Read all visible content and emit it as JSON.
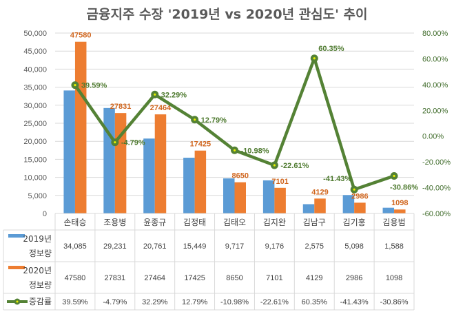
{
  "chart_data": {
    "type": "bar",
    "title": "금융지주 수장 '2019년 vs 2020년 관심도' 추이",
    "categories": [
      "손태승",
      "조용병",
      "윤종규",
      "김정태",
      "김태오",
      "김지완",
      "김남구",
      "김기홍",
      "김용범"
    ],
    "series": [
      {
        "name": "2019년 정보량",
        "type": "bar",
        "axis": "left",
        "color": "#5b9bd5",
        "values": [
          34085,
          29231,
          20761,
          15449,
          9717,
          9176,
          2575,
          5098,
          1588
        ],
        "table_labels": [
          "34,085",
          "29,231",
          "20,761",
          "15,449",
          "9,717",
          "9,176",
          "2,575",
          "5,098",
          "1,588"
        ]
      },
      {
        "name": "2020년 정보량",
        "type": "bar",
        "axis": "left",
        "color": "#ed7d31",
        "values": [
          47580,
          27831,
          27464,
          17425,
          8650,
          7101,
          4129,
          2986,
          1098
        ],
        "table_labels": [
          "47580",
          "27831",
          "27464",
          "17425",
          "8650",
          "7101",
          "4129",
          "2986",
          "1098"
        ]
      },
      {
        "name": "증감률",
        "type": "line",
        "axis": "right",
        "color": "#548235",
        "values": [
          39.59,
          -4.79,
          32.29,
          12.79,
          -10.98,
          -22.61,
          60.35,
          -41.43,
          -30.86
        ],
        "table_labels": [
          "39.59%",
          "-4.79%",
          "32.29%",
          "12.79%",
          "-10.98%",
          "-22.61%",
          "60.35%",
          "-41.43%",
          "-30.86%"
        ]
      }
    ],
    "y_left": {
      "ylim": [
        0,
        50000
      ],
      "ticks": [
        "0",
        "5,000",
        "10,000",
        "15,000",
        "20,000",
        "25,000",
        "30,000",
        "35,000",
        "40,000",
        "45,000",
        "50,000"
      ]
    },
    "y_right": {
      "ylim": [
        -60,
        80
      ],
      "ticks": [
        "-60.00%",
        "-40.00%",
        "-20.00%",
        "0.00%",
        "20.00%",
        "40.00%",
        "60.00%",
        "80.00%"
      ]
    },
    "grid": true,
    "legend": "data-table-bottom",
    "legend_labels": {
      "s19_line1": "2019년",
      "s19_line2": "정보량",
      "s20_line1": "2020년",
      "s20_line2": "정보량",
      "rate": "증감률"
    }
  }
}
